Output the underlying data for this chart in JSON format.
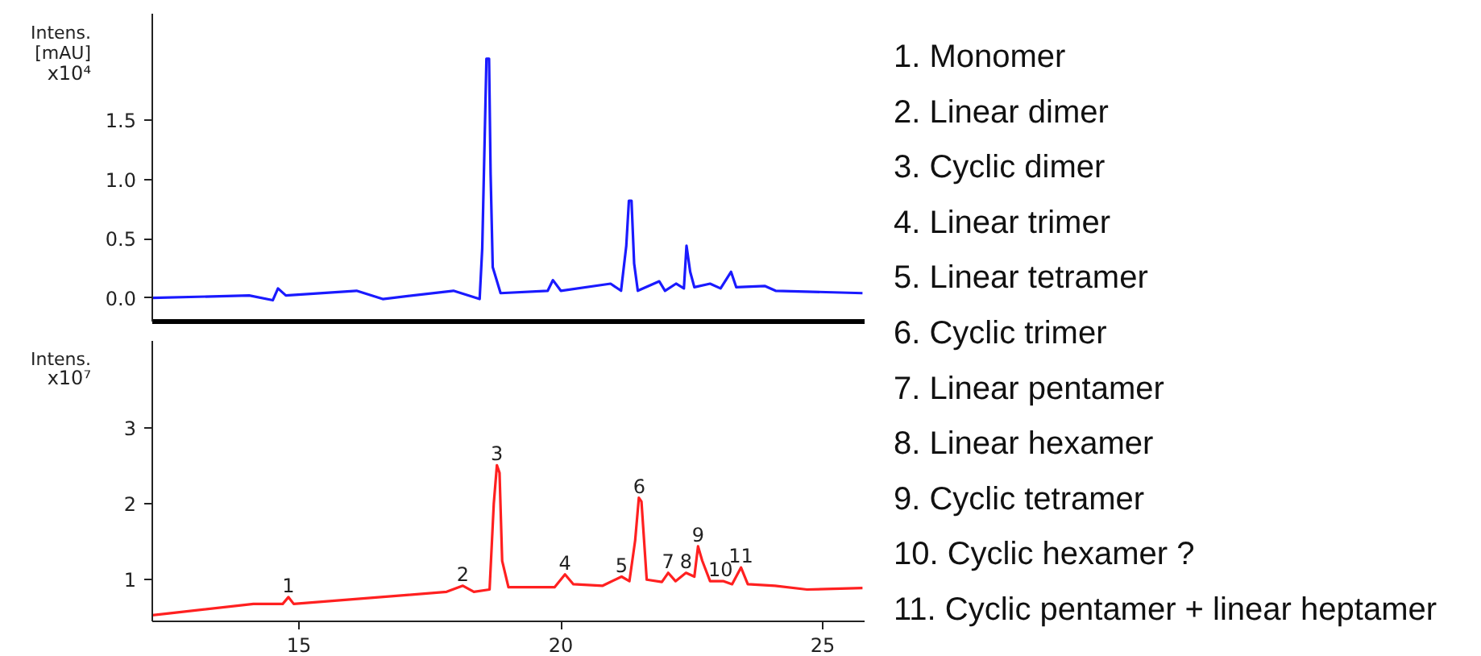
{
  "chart_data": [
    {
      "type": "line",
      "ylabel": "Intens.\n[mAU]",
      "annotations": [
        "x10⁴"
      ],
      "xlim": [
        12.2,
        25.8
      ],
      "ylim": [
        -0.2,
        2.4
      ],
      "yticks": [
        {
          "value": 0,
          "label": "0.0"
        },
        {
          "value": 0.5,
          "label": "0.5"
        },
        {
          "value": 1,
          "label": "1.0"
        },
        {
          "value": 1.5,
          "label": "1.5"
        }
      ],
      "tick_labels": "y",
      "grid": false,
      "series": [
        {
          "color": "#1a1aff",
          "x": [
            12.2,
            14.05,
            14.5,
            14.6,
            14.75,
            16.1,
            16.6,
            17.95,
            18.45,
            18.5,
            18.58,
            18.63,
            18.66,
            18.7,
            18.85,
            19.75,
            19.85,
            20.0,
            20.95,
            21.15,
            21.25,
            21.3,
            21.35,
            21.4,
            21.47,
            21.88,
            21.99,
            22.2,
            22.35,
            22.4,
            22.47,
            22.55,
            22.85,
            23.05,
            23.25,
            23.35,
            23.9,
            24.1,
            25.76
          ],
          "values": [
            0.0,
            0.02,
            -0.02,
            0.08,
            0.02,
            0.06,
            -0.01,
            0.06,
            -0.01,
            0.42,
            2.02,
            2.02,
            1.04,
            0.26,
            0.04,
            0.06,
            0.15,
            0.06,
            0.12,
            0.06,
            0.44,
            0.82,
            0.82,
            0.29,
            0.06,
            0.14,
            0.06,
            0.12,
            0.08,
            0.44,
            0.22,
            0.09,
            0.12,
            0.08,
            0.22,
            0.09,
            0.1,
            0.06,
            0.04
          ]
        }
      ]
    },
    {
      "type": "line",
      "ylabel": "Intens.",
      "annotations": [
        "x10⁷",
        {
          "text": "1",
          "x": 14.8,
          "y": 0.77
        },
        {
          "text": "2",
          "x": 18.13,
          "y": 0.92
        },
        {
          "text": "3",
          "x": 18.78,
          "y": 2.51
        },
        {
          "text": "4",
          "x": 20.08,
          "y": 1.07
        },
        {
          "text": "5",
          "x": 21.16,
          "y": 1.04
        },
        {
          "text": "6",
          "x": 21.5,
          "y": 2.08
        },
        {
          "text": "7",
          "x": 22.05,
          "y": 1.09
        },
        {
          "text": "8",
          "x": 22.39,
          "y": 1.09
        },
        {
          "text": "9",
          "x": 22.62,
          "y": 1.44
        },
        {
          "text": "10",
          "x": 23.05,
          "y": 0.98
        },
        {
          "text": "11",
          "x": 23.44,
          "y": 1.16
        }
      ],
      "xlim": [
        12.2,
        25.8
      ],
      "ylim": [
        0.45,
        4.15
      ],
      "xticks": [
        15,
        20,
        25
      ],
      "yticks": [
        1,
        2,
        3
      ],
      "grid": false,
      "series": [
        {
          "color": "#ff2020",
          "x": [
            12.2,
            14.13,
            14.69,
            14.8,
            14.9,
            17.1,
            17.82,
            18.13,
            18.34,
            18.64,
            18.72,
            18.78,
            18.83,
            18.88,
            19.0,
            19.88,
            20.08,
            20.24,
            20.8,
            21.16,
            21.31,
            21.42,
            21.49,
            21.54,
            21.64,
            21.93,
            22.05,
            22.19,
            22.39,
            22.55,
            22.62,
            22.7,
            22.85,
            23.11,
            23.27,
            23.44,
            23.57,
            24.09,
            24.7,
            25.76
          ],
          "values": [
            0.53,
            0.68,
            0.68,
            0.77,
            0.68,
            0.8,
            0.84,
            0.92,
            0.84,
            0.87,
            2.0,
            2.51,
            2.41,
            1.25,
            0.9,
            0.9,
            1.07,
            0.94,
            0.92,
            1.04,
            0.98,
            1.52,
            2.08,
            2.03,
            1.0,
            0.97,
            1.09,
            0.98,
            1.09,
            1.04,
            1.44,
            1.25,
            0.98,
            0.98,
            0.94,
            1.16,
            0.94,
            0.92,
            0.87,
            0.89
          ]
        }
      ]
    },
    {
      "type": "other",
      "annotations": [
        "1.    Monomer",
        "2.    Linear dimer",
        "3.    Cyclic dimer",
        "4.    Linear trimer",
        "5.    Linear tetramer",
        "6.    Cyclic trimer",
        "7.    Linear pentamer",
        "8.    Linear hexamer",
        "9.    Cyclic tetramer",
        "10.  Cyclic hexamer ?",
        "11.  Cyclic pentamer + linear heptamer"
      ]
    }
  ]
}
